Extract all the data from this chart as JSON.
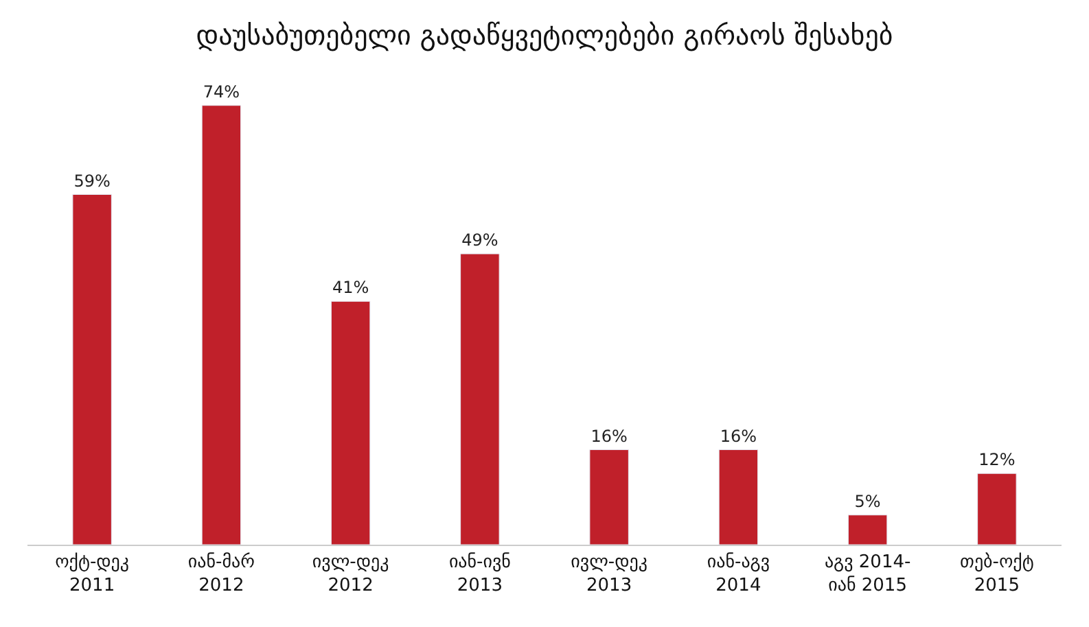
{
  "chart_data": {
    "type": "bar",
    "title": "დაუსაბუთებელი გადაწყვეტილებები გირაოს შესახებ",
    "categories": [
      "ოქტ-დეკ\n2011",
      "იან-მარ\n2012",
      "ივლ-დეკ\n2012",
      "იან-ივნ\n2013",
      "ივლ-დეკ\n2013",
      "იან-აგვ\n2014",
      "აგვ 2014-\nიან 2015",
      "თებ-ოქტ\n2015"
    ],
    "values": [
      59,
      74,
      41,
      49,
      16,
      16,
      5,
      12
    ],
    "value_labels": [
      "59%",
      "74%",
      "41%",
      "49%",
      "16%",
      "16%",
      "5%",
      "12%"
    ],
    "color": "#c0202a",
    "legend": false
  }
}
